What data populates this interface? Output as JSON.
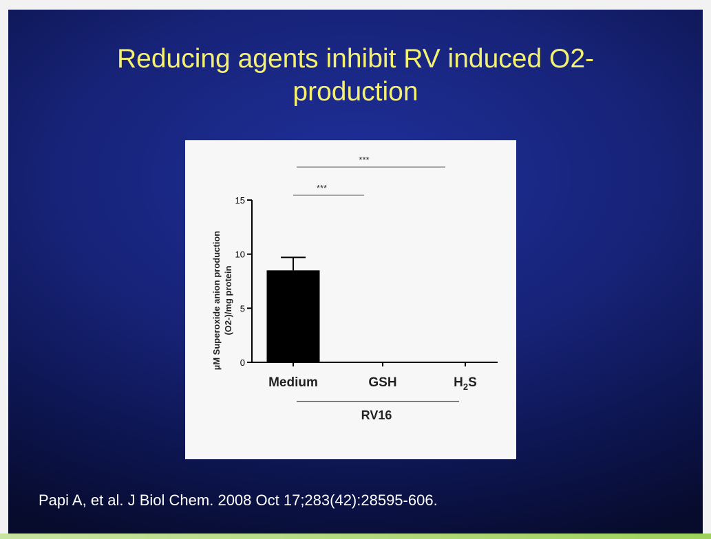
{
  "slide": {
    "title_line1": "Reducing agents inhibit RV induced O2-",
    "title_line2": "production",
    "citation": "Papi A, et al. J Biol Chem. 2008 Oct 17;283(42):28595-606."
  },
  "colors": {
    "title": "#f4f071",
    "bar": "#000000",
    "slide_bg": "#172378"
  },
  "chart_data": {
    "type": "bar",
    "categories": [
      "Medium",
      "GSH",
      "H2S"
    ],
    "values": [
      8.5,
      0,
      0
    ],
    "error": [
      1.2,
      0,
      0
    ],
    "ylabel": "µM Superoxide anion production (O2-)/mg protein",
    "ylim": [
      0,
      15
    ],
    "yticks": [
      0,
      5,
      10,
      15
    ],
    "group_label": "RV16",
    "significance": [
      {
        "from": 0,
        "to": 1,
        "label": "***"
      },
      {
        "from": 0,
        "to": 2,
        "label": "***"
      }
    ]
  }
}
